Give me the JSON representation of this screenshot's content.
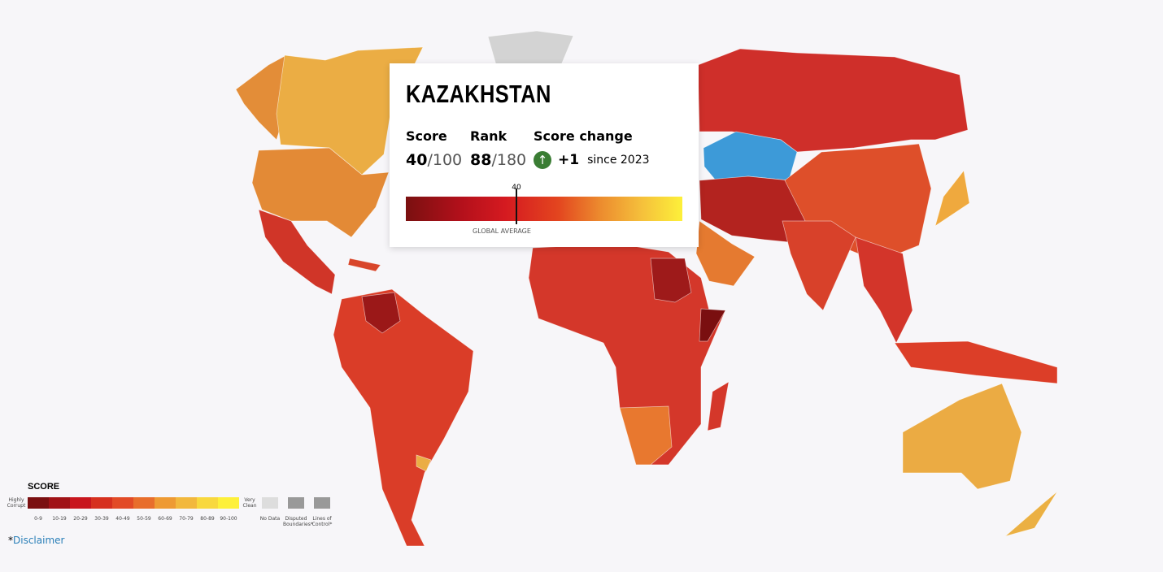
{
  "tooltip": {
    "country": "KAZAKHSTAN",
    "score_heading": "Score",
    "score": 40,
    "score_max": "/100",
    "rank_heading": "Rank",
    "rank": 88,
    "rank_max": "/180",
    "change_heading": "Score change",
    "change": "+1",
    "change_since": "since 2023",
    "scale_label": "GLOBAL AVERAGE"
  },
  "legend": {
    "title": "SCORE",
    "low_label": "Highly Corrupt",
    "high_label": "Very Clean",
    "ranges": [
      {
        "label": "0-9",
        "color": "#7a0f10"
      },
      {
        "label": "10-19",
        "color": "#a01216"
      },
      {
        "label": "20-29",
        "color": "#c8161e"
      },
      {
        "label": "30-39",
        "color": "#d6301f"
      },
      {
        "label": "40-49",
        "color": "#e24b27"
      },
      {
        "label": "50-59",
        "color": "#e86e2c"
      },
      {
        "label": "60-69",
        "color": "#ee9a33"
      },
      {
        "label": "70-79",
        "color": "#f2b83d"
      },
      {
        "label": "80-89",
        "color": "#f8d83e"
      },
      {
        "label": "90-100",
        "color": "#fdf03a"
      }
    ],
    "no_data": "No Data",
    "disputed": "Disputed Boundaries*",
    "lines": "Lines of Control*"
  },
  "disclaimer": {
    "star": "*",
    "link": "Disclaimer"
  }
}
